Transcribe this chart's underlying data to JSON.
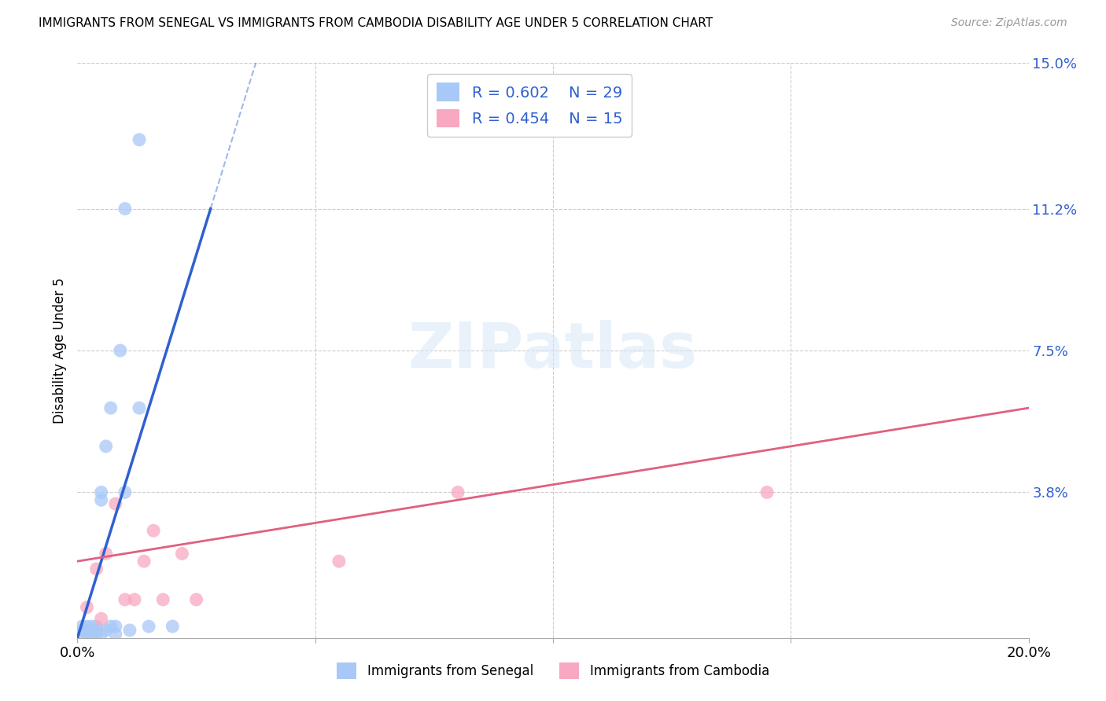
{
  "title": "IMMIGRANTS FROM SENEGAL VS IMMIGRANTS FROM CAMBODIA DISABILITY AGE UNDER 5 CORRELATION CHART",
  "source": "Source: ZipAtlas.com",
  "ylabel": "Disability Age Under 5",
  "xlim": [
    0.0,
    0.2
  ],
  "ylim": [
    0.0,
    0.15
  ],
  "color_senegal": "#a8c8f8",
  "color_cambodia": "#f8a8c0",
  "color_senegal_line": "#3060d0",
  "color_cambodia_line": "#e06080",
  "senegal_x": [
    0.001,
    0.001,
    0.001,
    0.002,
    0.002,
    0.002,
    0.003,
    0.003,
    0.003,
    0.004,
    0.004,
    0.004,
    0.005,
    0.005,
    0.005,
    0.006,
    0.006,
    0.007,
    0.007,
    0.008,
    0.008,
    0.009,
    0.01,
    0.011,
    0.013,
    0.015,
    0.02,
    0.01,
    0.013
  ],
  "senegal_y": [
    0.001,
    0.002,
    0.003,
    0.001,
    0.002,
    0.003,
    0.001,
    0.002,
    0.003,
    0.001,
    0.002,
    0.003,
    0.001,
    0.036,
    0.038,
    0.002,
    0.05,
    0.003,
    0.06,
    0.001,
    0.003,
    0.075,
    0.038,
    0.002,
    0.06,
    0.003,
    0.003,
    0.112,
    0.13
  ],
  "cambodia_x": [
    0.002,
    0.004,
    0.005,
    0.006,
    0.008,
    0.01,
    0.012,
    0.014,
    0.016,
    0.018,
    0.022,
    0.025,
    0.055,
    0.08,
    0.145
  ],
  "cambodia_y": [
    0.008,
    0.018,
    0.005,
    0.022,
    0.035,
    0.01,
    0.01,
    0.02,
    0.028,
    0.01,
    0.022,
    0.01,
    0.02,
    0.038,
    0.038
  ],
  "senegal_line_x0": 0.0,
  "senegal_line_y0": 0.0,
  "senegal_line_x1": 0.028,
  "senegal_line_y1": 0.112,
  "cambodia_line_x0": 0.0,
  "cambodia_line_y0": 0.02,
  "cambodia_line_x1": 0.2,
  "cambodia_line_y1": 0.06
}
